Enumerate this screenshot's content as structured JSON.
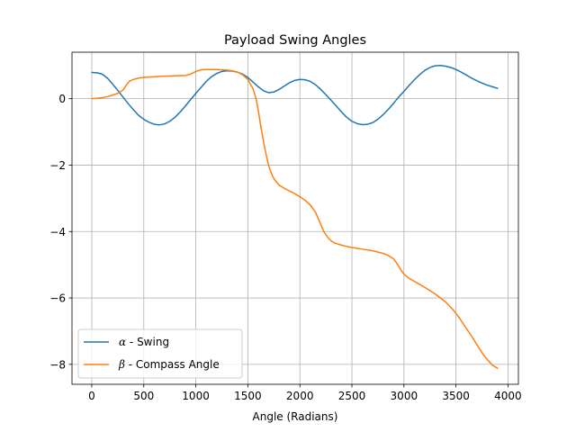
{
  "chart_data": {
    "type": "line",
    "title": "Payload Swing Angles",
    "xlabel": "Angle (Radians)",
    "ylabel": "",
    "xlim": [
      -190,
      4100
    ],
    "ylim": [
      -8.6,
      1.4
    ],
    "xticks": [
      0,
      500,
      1000,
      1500,
      2000,
      2500,
      3000,
      3500,
      4000
    ],
    "yticks": [
      0,
      -2,
      -4,
      -6,
      -8
    ],
    "grid": true,
    "legend": "lower-left",
    "series": [
      {
        "name": "α - Swing",
        "symbol": "α",
        "label_rest": " - Swing",
        "color": "#1f77b4",
        "x": [
          0,
          50,
          100,
          150,
          200,
          250,
          300,
          350,
          400,
          450,
          500,
          550,
          600,
          650,
          700,
          750,
          800,
          850,
          900,
          950,
          1000,
          1050,
          1100,
          1150,
          1200,
          1250,
          1300,
          1350,
          1400,
          1450,
          1500,
          1550,
          1600,
          1650,
          1700,
          1750,
          1800,
          1850,
          1900,
          1950,
          2000,
          2050,
          2100,
          2150,
          2200,
          2250,
          2300,
          2350,
          2400,
          2450,
          2500,
          2550,
          2600,
          2650,
          2700,
          2750,
          2800,
          2850,
          2900,
          2950,
          3000,
          3050,
          3100,
          3150,
          3200,
          3250,
          3300,
          3350,
          3400,
          3450,
          3500,
          3550,
          3600,
          3650,
          3700,
          3750,
          3800,
          3850,
          3900
        ],
        "y": [
          0.79,
          0.78,
          0.74,
          0.62,
          0.44,
          0.25,
          0.05,
          -0.15,
          -0.33,
          -0.5,
          -0.62,
          -0.71,
          -0.77,
          -0.79,
          -0.76,
          -0.68,
          -0.56,
          -0.4,
          -0.22,
          -0.03,
          0.16,
          0.34,
          0.52,
          0.66,
          0.76,
          0.82,
          0.84,
          0.83,
          0.8,
          0.74,
          0.64,
          0.5,
          0.36,
          0.24,
          0.18,
          0.2,
          0.28,
          0.38,
          0.48,
          0.55,
          0.58,
          0.57,
          0.52,
          0.42,
          0.28,
          0.12,
          -0.05,
          -0.22,
          -0.4,
          -0.56,
          -0.68,
          -0.75,
          -0.78,
          -0.77,
          -0.72,
          -0.62,
          -0.48,
          -0.32,
          -0.14,
          0.05,
          0.22,
          0.4,
          0.57,
          0.72,
          0.85,
          0.94,
          0.99,
          1.0,
          0.98,
          0.94,
          0.88,
          0.8,
          0.71,
          0.62,
          0.54,
          0.47,
          0.41,
          0.36,
          0.31
        ]
      },
      {
        "name": "β - Compass Angle",
        "symbol": "β",
        "label_rest": " - Compass Angle",
        "color": "#ff7f0e",
        "x": [
          0,
          50,
          100,
          150,
          200,
          250,
          300,
          330,
          360,
          400,
          450,
          500,
          600,
          700,
          800,
          900,
          950,
          1000,
          1050,
          1100,
          1200,
          1300,
          1350,
          1400,
          1450,
          1500,
          1550,
          1580,
          1600,
          1620,
          1640,
          1660,
          1680,
          1700,
          1720,
          1740,
          1760,
          1780,
          1800,
          1850,
          1900,
          1950,
          2000,
          2050,
          2100,
          2150,
          2200,
          2230,
          2260,
          2280,
          2300,
          2320,
          2340,
          2360,
          2380,
          2400,
          2450,
          2500,
          2600,
          2700,
          2800,
          2850,
          2900,
          2930,
          2960,
          2980,
          3000,
          3020,
          3050,
          3100,
          3150,
          3200,
          3300,
          3400,
          3450,
          3500,
          3550,
          3600,
          3650,
          3700,
          3750,
          3800,
          3850,
          3900
        ],
        "y": [
          0.0,
          0.01,
          0.03,
          0.06,
          0.11,
          0.16,
          0.26,
          0.4,
          0.52,
          0.58,
          0.62,
          0.64,
          0.66,
          0.68,
          0.69,
          0.7,
          0.74,
          0.82,
          0.87,
          0.88,
          0.88,
          0.86,
          0.84,
          0.8,
          0.72,
          0.58,
          0.3,
          -0.02,
          -0.35,
          -0.75,
          -1.1,
          -1.45,
          -1.75,
          -2.02,
          -2.2,
          -2.35,
          -2.45,
          -2.53,
          -2.6,
          -2.7,
          -2.78,
          -2.86,
          -2.95,
          -3.06,
          -3.2,
          -3.42,
          -3.78,
          -4.0,
          -4.14,
          -4.22,
          -4.28,
          -4.32,
          -4.35,
          -4.37,
          -4.39,
          -4.41,
          -4.45,
          -4.48,
          -4.53,
          -4.58,
          -4.66,
          -4.72,
          -4.82,
          -4.95,
          -5.1,
          -5.2,
          -5.28,
          -5.34,
          -5.41,
          -5.5,
          -5.59,
          -5.68,
          -5.88,
          -6.12,
          -6.28,
          -6.46,
          -6.68,
          -6.92,
          -7.15,
          -7.4,
          -7.65,
          -7.85,
          -8.02,
          -8.12
        ]
      }
    ]
  }
}
